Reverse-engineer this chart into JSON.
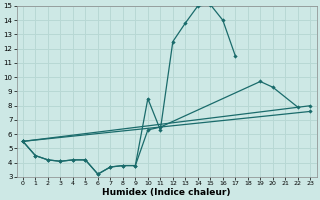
{
  "xlabel": "Humidex (Indice chaleur)",
  "xlim": [
    -0.5,
    23.5
  ],
  "ylim": [
    3,
    15
  ],
  "xticks": [
    0,
    1,
    2,
    3,
    4,
    5,
    6,
    7,
    8,
    9,
    10,
    11,
    12,
    13,
    14,
    15,
    16,
    17,
    18,
    19,
    20,
    21,
    22,
    23
  ],
  "yticks": [
    3,
    4,
    5,
    6,
    7,
    8,
    9,
    10,
    11,
    12,
    13,
    14,
    15
  ],
  "bg_color": "#cde8e5",
  "grid_color": "#b8d8d4",
  "line_color": "#1a6b6b",
  "line1_x": [
    0,
    1,
    2,
    3,
    4,
    5,
    6,
    7,
    8,
    9,
    10,
    11,
    12,
    13,
    14,
    15,
    16,
    17
  ],
  "line1_y": [
    5.5,
    4.5,
    4.2,
    4.1,
    4.2,
    4.2,
    3.2,
    3.7,
    3.8,
    3.8,
    8.5,
    6.3,
    12.5,
    13.8,
    15.0,
    15.1,
    14.0,
    11.5
  ],
  "line2_x": [
    0,
    1,
    2,
    3,
    4,
    5,
    6,
    7,
    8,
    9,
    10,
    11,
    19,
    20,
    22
  ],
  "line2_y": [
    5.5,
    4.5,
    4.2,
    4.1,
    4.2,
    4.2,
    3.2,
    3.7,
    3.8,
    3.8,
    6.3,
    6.5,
    9.7,
    9.3,
    7.9
  ],
  "line2_seg1_end": 11,
  "line2_seg2_start": 10,
  "line3_x": [
    0,
    23
  ],
  "line3_y": [
    5.5,
    8.0
  ],
  "line4_x": [
    0,
    23
  ],
  "line4_y": [
    5.5,
    7.6
  ]
}
